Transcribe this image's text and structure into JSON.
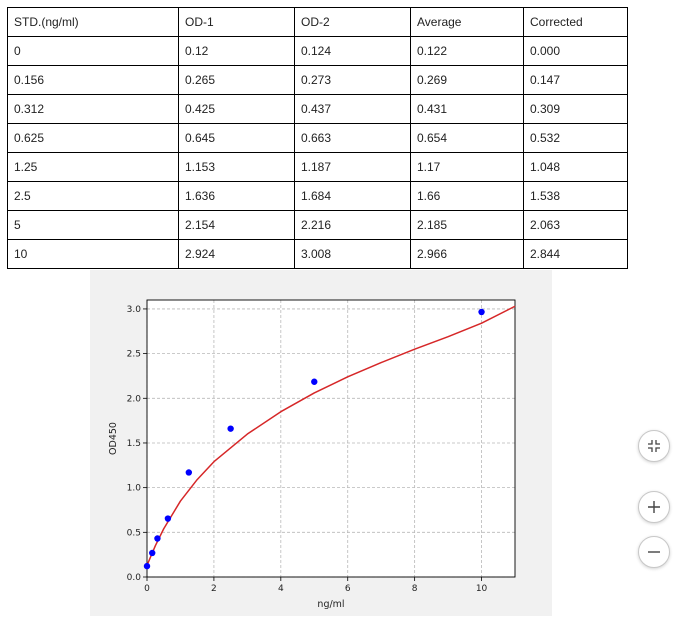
{
  "table": {
    "headers": [
      "STD.(ng/ml)",
      "OD-1",
      "OD-2",
      "Average",
      "Corrected"
    ],
    "rows": [
      [
        "0",
        "0.12",
        "0.124",
        "0.122",
        "0.000"
      ],
      [
        "0.156",
        "0.265",
        "0.273",
        "0.269",
        "0.147"
      ],
      [
        "0.312",
        "0.425",
        "0.437",
        "0.431",
        "0.309"
      ],
      [
        "0.625",
        "0.645",
        "0.663",
        "0.654",
        "0.532"
      ],
      [
        "1.25",
        "1.153",
        "1.187",
        "1.17",
        "1.048"
      ],
      [
        "2.5",
        "1.636",
        "1.684",
        "1.66",
        "1.538"
      ],
      [
        "5",
        "2.154",
        "2.216",
        "2.185",
        "2.063"
      ],
      [
        "10",
        "2.924",
        "3.008",
        "2.966",
        "2.844"
      ]
    ]
  },
  "chart_data": {
    "type": "scatter",
    "xlabel": "ng/ml",
    "ylabel": "OD450",
    "xlim": [
      0,
      11
    ],
    "ylim": [
      0,
      3.1
    ],
    "xticks": [
      "0",
      "2",
      "4",
      "6",
      "8",
      "10"
    ],
    "yticks": [
      "0.0",
      "0.5",
      "1.0",
      "1.5",
      "2.0",
      "2.5",
      "3.0"
    ],
    "grid": true,
    "series": [
      {
        "kind": "points",
        "color": "#0000ff",
        "x": [
          0,
          0.156,
          0.312,
          0.625,
          1.25,
          2.5,
          5,
          10
        ],
        "y": [
          0.122,
          0.269,
          0.431,
          0.654,
          1.17,
          1.66,
          2.185,
          2.966
        ]
      },
      {
        "kind": "fit-curve",
        "color": "#d62728",
        "x": [
          0,
          0.25,
          0.5,
          1,
          1.5,
          2,
          3,
          4,
          5,
          6,
          7,
          8,
          9,
          10,
          11
        ],
        "y": [
          0.13,
          0.35,
          0.54,
          0.85,
          1.09,
          1.29,
          1.6,
          1.85,
          2.06,
          2.24,
          2.4,
          2.55,
          2.69,
          2.84,
          3.03
        ]
      }
    ]
  },
  "controls": {
    "fit_icon": "fit-screen-icon",
    "zoom_in_icon": "plus-icon",
    "zoom_out_icon": "minus-icon"
  }
}
